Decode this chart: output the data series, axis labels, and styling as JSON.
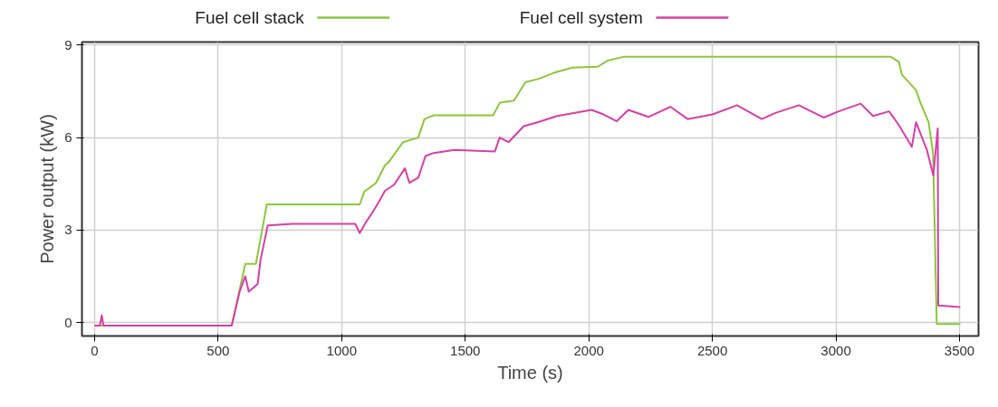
{
  "chart_data": {
    "type": "line",
    "xlabel": "Time (s)",
    "ylabel": "Power output (kW)",
    "xlim": [
      -51,
      3577
    ],
    "ylim": [
      -0.44,
      9.1
    ],
    "xticks": [
      0,
      500,
      1000,
      1500,
      2000,
      2500,
      3000,
      3500
    ],
    "yticks": [
      0,
      3,
      6,
      9
    ],
    "grid": true,
    "legend": "top",
    "line_style": "solid",
    "series": [
      {
        "name": "Fuel cell stack",
        "color": "#8cc63f",
        "x": [
          0,
          555,
          610,
          653,
          697,
          1073,
          1091,
          1139,
          1175,
          1190,
          1248,
          1310,
          1335,
          1372,
          1613,
          1640,
          1697,
          1744,
          1795,
          1858,
          1934,
          2036,
          2077,
          2139,
          2450,
          3223,
          3255,
          3267,
          3324,
          3342,
          3375,
          3393,
          3408,
          3503
        ],
        "values": [
          -0.1,
          -0.1,
          1.9,
          1.9,
          3.83,
          3.83,
          4.24,
          4.53,
          5.1,
          5.2,
          5.85,
          6.0,
          6.6,
          6.72,
          6.72,
          7.13,
          7.2,
          7.8,
          7.9,
          8.1,
          8.27,
          8.3,
          8.5,
          8.62,
          8.62,
          8.62,
          8.45,
          8.04,
          7.54,
          7.13,
          6.5,
          5.5,
          -0.05,
          -0.05
        ]
      },
      {
        "name": "Fuel cell system",
        "color": "#d63fa4",
        "x": [
          0,
          22,
          29,
          36,
          555,
          587,
          610,
          624,
          660,
          672,
          701,
          799,
          1055,
          1073,
          1098,
          1122,
          1153,
          1175,
          1212,
          1256,
          1274,
          1310,
          1339,
          1372,
          1456,
          1620,
          1639,
          1675,
          1737,
          1795,
          1872,
          2011,
          2060,
          2113,
          2160,
          2241,
          2330,
          2400,
          2500,
          2600,
          2700,
          2755,
          2850,
          2950,
          3011,
          3100,
          3150,
          3215,
          3255,
          3307,
          3324,
          3368,
          3394,
          3412,
          3414,
          3503
        ],
        "values": [
          -0.1,
          -0.1,
          0.23,
          -0.1,
          -0.1,
          1.0,
          1.5,
          1.0,
          1.25,
          2.05,
          3.15,
          3.2,
          3.2,
          2.9,
          3.25,
          3.54,
          3.95,
          4.27,
          4.47,
          5.0,
          4.53,
          4.7,
          5.4,
          5.5,
          5.6,
          5.55,
          6.0,
          5.85,
          6.37,
          6.5,
          6.7,
          6.9,
          6.75,
          6.53,
          6.9,
          6.67,
          7.0,
          6.6,
          6.75,
          7.05,
          6.6,
          6.8,
          7.05,
          6.65,
          6.85,
          7.1,
          6.7,
          6.85,
          6.4,
          5.7,
          6.5,
          5.6,
          4.77,
          6.3,
          0.55,
          0.5
        ]
      }
    ]
  }
}
